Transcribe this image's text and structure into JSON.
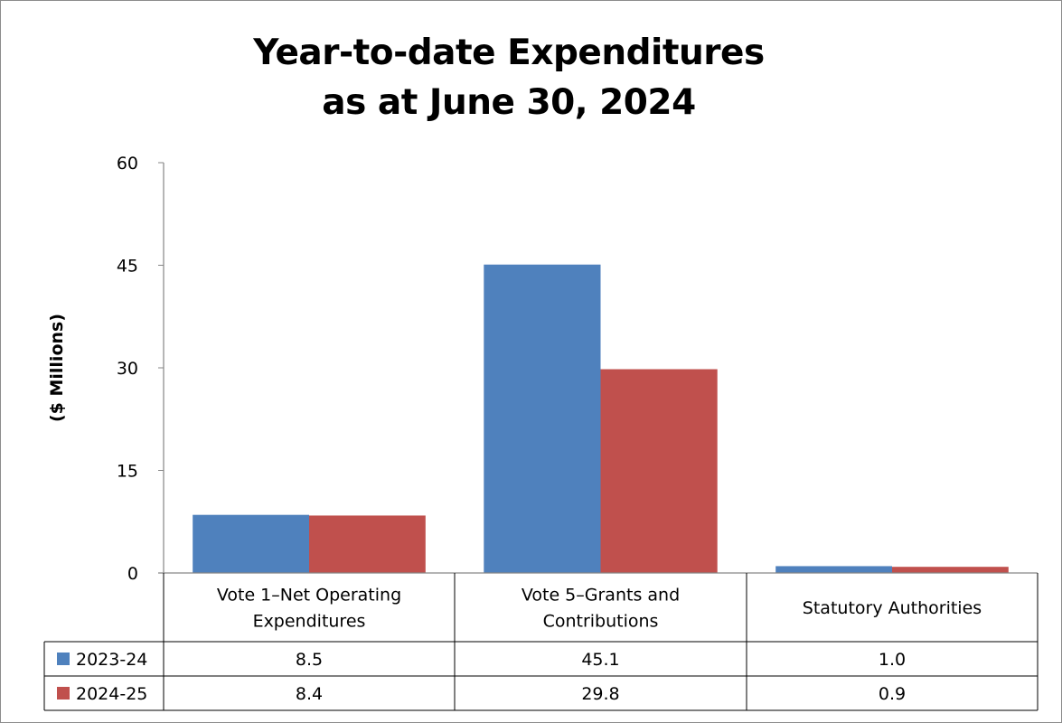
{
  "chart_data": {
    "type": "bar",
    "title_lines": [
      "Year-to-date Expenditures",
      "as at June 30, 2024"
    ],
    "ylabel": "($ Millions)",
    "xlabel": "",
    "ylim": [
      0,
      60
    ],
    "yticks": [
      "0",
      "15",
      "30",
      "45",
      "60"
    ],
    "ytick_values": [
      0,
      15,
      30,
      45,
      60
    ],
    "categories": [
      [
        "Vote 1–Net Operating",
        "Expenditures"
      ],
      [
        "Vote 5–Grants and",
        "Contributions"
      ],
      [
        "Statutory Authorities"
      ]
    ],
    "series": [
      {
        "name": "2023-24",
        "color": "#4f81bd",
        "values": [
          8.5,
          45.1,
          1.0
        ],
        "labels": [
          "8.5",
          "45.1",
          "1.0"
        ]
      },
      {
        "name": "2024-25",
        "color": "#c0504d",
        "values": [
          8.4,
          29.8,
          0.9
        ],
        "labels": [
          "8.4",
          "29.8",
          "0.9"
        ]
      }
    ],
    "grid": false,
    "legend": "data-table"
  }
}
